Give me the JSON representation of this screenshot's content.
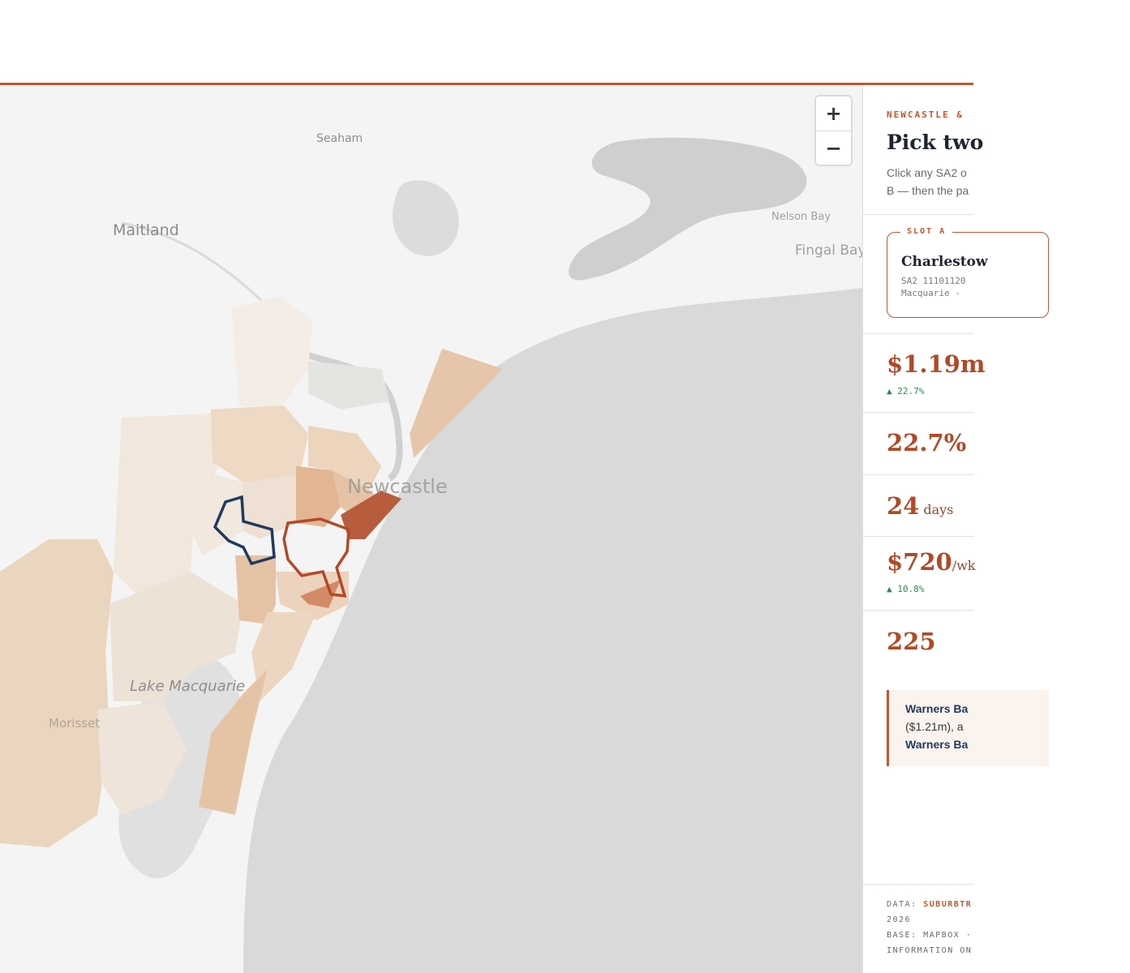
{
  "map": {
    "labels": {
      "seaham": "Seaham",
      "maitland": "Maitland",
      "nelson_bay": "Nelson Bay",
      "fingal_bay": "Fingal Bay",
      "newcastle": "Newcastle",
      "lake_macquarie": "Lake Macquarie",
      "morisset": "Morisset"
    },
    "zoom": {
      "in_label": "+",
      "out_label": "−"
    },
    "colors": {
      "land": "#f4f4f4",
      "water": "#d9d9d9",
      "choropleth_light": "#efe4d9",
      "choropleth_mid": "#e6c8ae",
      "choropleth_dark": "#b85c3e",
      "slot_a_outline": "#b14a28",
      "slot_b_outline": "#1f3a5f"
    }
  },
  "panel": {
    "kicker": "NEWCASTLE &",
    "heading": "Pick two",
    "intro_line1": "Click any SA2 o",
    "intro_line2": "B — then the pa",
    "slot_a": {
      "tag": "SLOT A",
      "name": "Charlestow",
      "code": "SA2 11101120",
      "region": "Macquarie -"
    },
    "stats": {
      "median_price": "$1.19m",
      "median_price_delta": "▲ 22.7%",
      "growth": "22.7%",
      "days_value": "24",
      "days_unit": "days",
      "rent_value": "$720",
      "rent_unit": "/wk",
      "rent_delta": "▲ 10.8%",
      "sales": "225"
    },
    "note": {
      "line1": "Warners Ba",
      "line2": "($1.21m), a",
      "line3": "Warners Ba"
    },
    "footer": {
      "data_label": "DATA:",
      "data_source": "SUBURBTR",
      "year": "2026",
      "base": "BASE: MAPBOX ·",
      "info": "INFORMATION ON"
    }
  }
}
